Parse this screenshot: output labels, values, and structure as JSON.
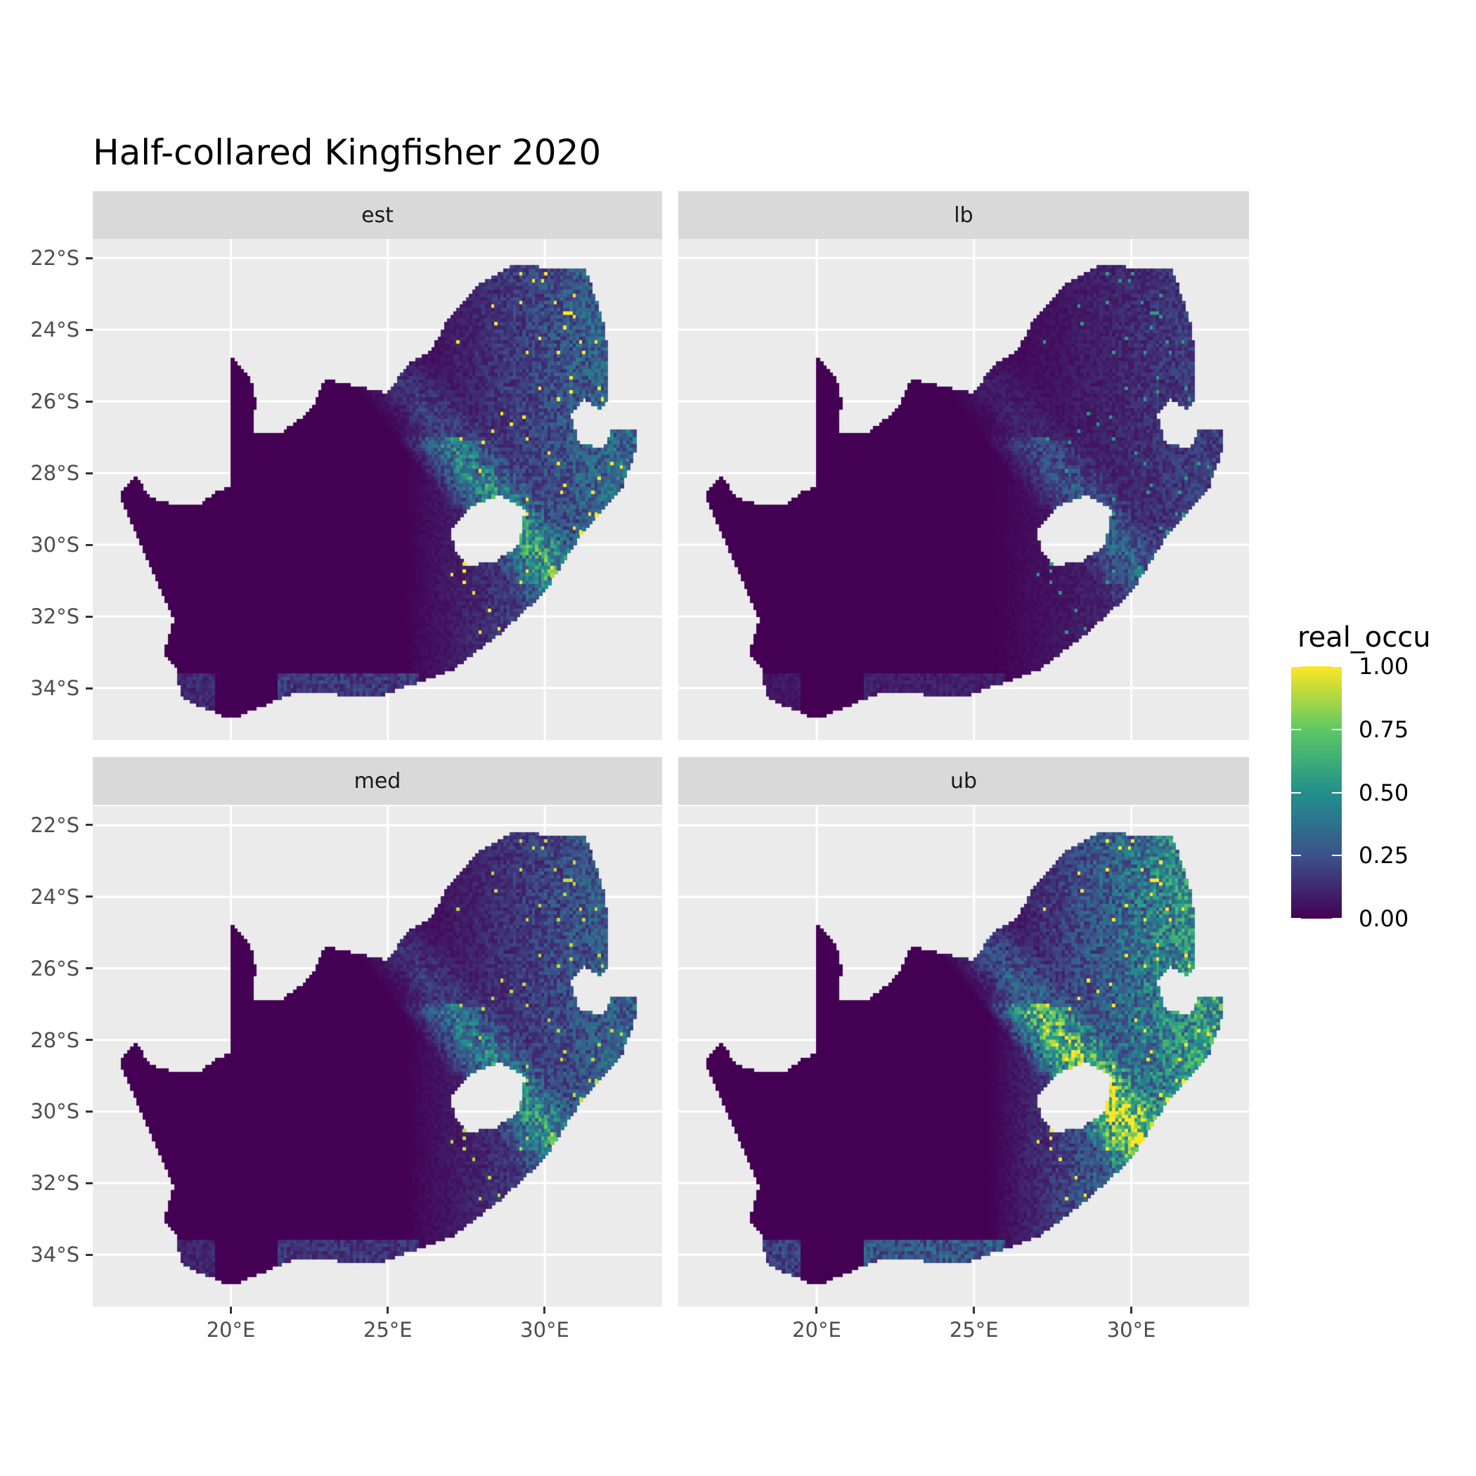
{
  "title": "Half-collared Kingfisher 2020",
  "facets": [
    {
      "label": "est",
      "scale": 1.0
    },
    {
      "label": "lb",
      "scale": 0.55
    },
    {
      "label": "med",
      "scale": 0.9
    },
    {
      "label": "ub",
      "scale": 1.6
    }
  ],
  "x_ticks": [
    {
      "value": 20,
      "label": "20°E"
    },
    {
      "value": 25,
      "label": "25°E"
    },
    {
      "value": 30,
      "label": "30°E"
    }
  ],
  "y_ticks": [
    {
      "value": -22,
      "label": "22°S"
    },
    {
      "value": -24,
      "label": "24°S"
    },
    {
      "value": -26,
      "label": "26°S"
    },
    {
      "value": -28,
      "label": "28°S"
    },
    {
      "value": -30,
      "label": "30°S"
    },
    {
      "value": -32,
      "label": "32°S"
    },
    {
      "value": -34,
      "label": "34°S"
    }
  ],
  "legend": {
    "title": "real_occu",
    "labels": [
      {
        "value": 1.0,
        "label": "1.00"
      },
      {
        "value": 0.75,
        "label": "0.75"
      },
      {
        "value": 0.5,
        "label": "0.50"
      },
      {
        "value": 0.25,
        "label": "0.25"
      },
      {
        "value": 0.0,
        "label": "0.00"
      }
    ],
    "colors": [
      "#440154",
      "#3B528B",
      "#21908C",
      "#5DC863",
      "#FDE725"
    ]
  },
  "chart_data": {
    "type": "heatmap",
    "title": "Half-collared Kingfisher 2020",
    "facets": [
      "est",
      "lb",
      "med",
      "ub"
    ],
    "fill_variable": "real_occu",
    "fill_range": [
      0,
      1
    ],
    "colormap": "viridis",
    "xlim": [
      15.6,
      33.7
    ],
    "ylim": [
      -35.45,
      -21.5
    ],
    "grid": true,
    "legend_position": "right"
  }
}
